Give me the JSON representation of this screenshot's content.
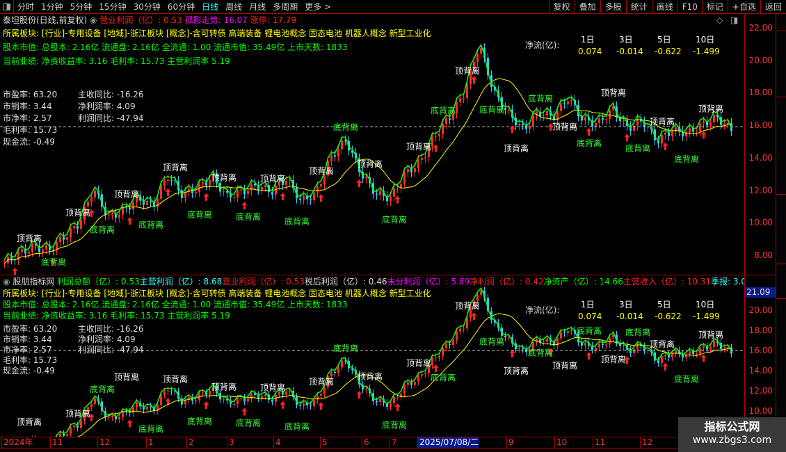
{
  "toolbar": {
    "periods": [
      "分时",
      "1分钟",
      "5分钟",
      "15分钟",
      "30分钟",
      "60分钟",
      "日线",
      "周线",
      "月线",
      "多周期",
      "更多 >"
    ],
    "active": "日线",
    "right": [
      "复权",
      "叠加",
      "多股",
      "统计",
      "画线",
      "F10",
      "标记",
      "+自选",
      "返回"
    ]
  },
  "upper": {
    "title": "泰坦股份(日线,前复权)",
    "ind1": "营业利润（亿）: 0.53",
    "ind2": "孤影走势: 16.07",
    "ind3": "涨停: 17.79",
    "sector": "所属板块: [行业]-专用设备 [地域]-浙江板块 [概念]-含可转债 高端装备 锂电池概念 固态电池 机器人概念 新型工业化",
    "capital": "股本市值: 总股本: 2.16亿 流通盘: 2.16亿 全流通: 1.00 流通市值: 35.49亿 上市天数: 1833",
    "perf": "当前业绩: 净资收益率: 3.16 毛利率: 15.73 主营利润率 5.19",
    "stats_left": [
      "市盈率: 63.20",
      "市销率: 3.44",
      "市净率: 2.57",
      "毛利率: 15.73",
      "现金流: -0.49"
    ],
    "stats_right": [
      "主收同比: -16.26",
      "净利润率: 4.09",
      "利润同比: -47.94"
    ],
    "flow": {
      "label": "净流(亿):",
      "cols": [
        {
          "h": "1日",
          "v": "0.074"
        },
        {
          "h": "3日",
          "v": "-0.014"
        },
        {
          "h": "5日",
          "v": "-0.622"
        },
        {
          "h": "10日",
          "v": "-1.499"
        }
      ]
    },
    "yticks": [
      "22.00",
      "20.00",
      "18.00",
      "16.00",
      "14.00",
      "12.00",
      "10.00",
      "8.00"
    ]
  },
  "lower": {
    "title": "股朋指标网",
    "items": [
      {
        "t": "利润总额（亿）: 0.53",
        "c": "g"
      },
      {
        "t": "主营利润（亿）: 8.68",
        "c": "c"
      },
      {
        "t": "营业利润（亿）: 0.53",
        "c": "r"
      },
      {
        "t": "税后利润（亿）: 0.46",
        "c": "w"
      },
      {
        "t": "未分利润（亿）: 5.89",
        "c": "m"
      },
      {
        "t": "净利润（亿）: 0.42",
        "c": "r"
      },
      {
        "t": "净资产（亿）: 14.66",
        "c": "g"
      },
      {
        "t": "主营收入（亿）: 10.31",
        "c": "r"
      },
      {
        "t": "季报: 3.0",
        "c": "c"
      }
    ],
    "yticks": [
      "20.00",
      "18.00",
      "16.00",
      "14.00",
      "12.00",
      "10.00"
    ],
    "cursor_price": "21.09"
  },
  "annotations": {
    "top": "顶背离",
    "bottom": "底背离",
    "num": "45"
  },
  "dates": [
    "2024年",
    "11",
    "12",
    "1",
    "2",
    "3",
    "4",
    "5",
    "6",
    "7",
    "2025/07/08/二",
    "9",
    "10",
    "11",
    "12"
  ],
  "watermark": {
    "line1": "指标公式网",
    "line2": "www.zbgs3.com"
  },
  "chart_data": {
    "type": "candlestick",
    "ylim": [
      7.5,
      22.5
    ],
    "keypoints": [
      8.0,
      8.6,
      9.0,
      8.8,
      9.6,
      10.4,
      12.6,
      10.8,
      11.2,
      12.0,
      11.5,
      13.4,
      12.2,
      12.6,
      13.3,
      12.1,
      12.4,
      12.8,
      12.4,
      13.2,
      11.8,
      12.3,
      14.5,
      15.6,
      13.6,
      12.3,
      12.0,
      13.5,
      14.2,
      15.8,
      17.0,
      18.5,
      21.5,
      18.5,
      17.2,
      16.2,
      17.3,
      17.0,
      18.2,
      16.8,
      16.6,
      17.5,
      16.3,
      16.8,
      15.5,
      16.2,
      16.0,
      16.5,
      17.0,
      16.2
    ],
    "colors": {
      "up": "#ff2d2d",
      "down": "#33ccff",
      "ma": "#ff0",
      "line": "#0f0"
    }
  }
}
